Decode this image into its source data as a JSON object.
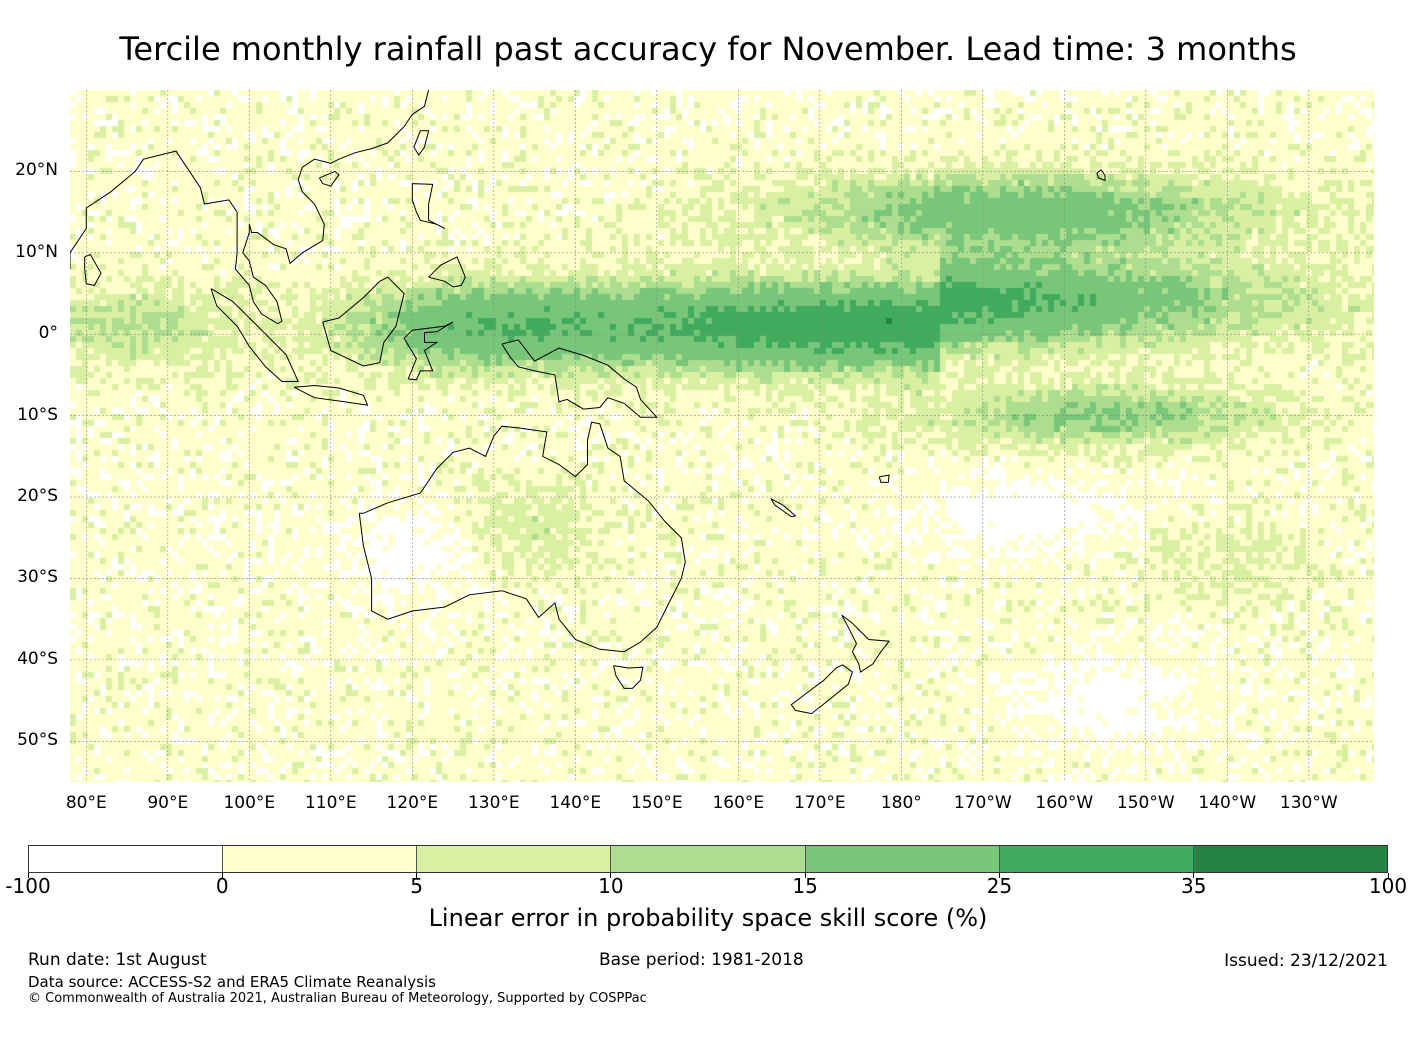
{
  "title": "Tercile monthly rainfall past accuracy for November. Lead time: 3 months",
  "map": {
    "lon_range": [
      78,
      238
    ],
    "lat_range": [
      -55,
      30
    ],
    "lat_labels": [
      {
        "lat": 20,
        "label": "20°N"
      },
      {
        "lat": 10,
        "label": "10°N"
      },
      {
        "lat": 0,
        "label": "0°"
      },
      {
        "lat": -10,
        "label": "10°S"
      },
      {
        "lat": -20,
        "label": "20°S"
      },
      {
        "lat": -30,
        "label": "30°S"
      },
      {
        "lat": -40,
        "label": "40°S"
      },
      {
        "lat": -50,
        "label": "50°S"
      }
    ],
    "lon_labels": [
      {
        "lon": 80,
        "label": "80°E"
      },
      {
        "lon": 90,
        "label": "90°E"
      },
      {
        "lon": 100,
        "label": "100°E"
      },
      {
        "lon": 110,
        "label": "110°E"
      },
      {
        "lon": 120,
        "label": "120°E"
      },
      {
        "lon": 130,
        "label": "130°E"
      },
      {
        "lon": 140,
        "label": "140°E"
      },
      {
        "lon": 150,
        "label": "150°E"
      },
      {
        "lon": 160,
        "label": "160°E"
      },
      {
        "lon": 170,
        "label": "170°E"
      },
      {
        "lon": 180,
        "label": "180°"
      },
      {
        "lon": 190,
        "label": "170°W"
      },
      {
        "lon": 200,
        "label": "160°W"
      },
      {
        "lon": 210,
        "label": "150°W"
      },
      {
        "lon": 220,
        "label": "140°W"
      },
      {
        "lon": 230,
        "label": "130°W"
      }
    ]
  },
  "colorbar": {
    "title": "Linear error in probability space skill score (%)",
    "tick_labels": [
      "-100",
      "0",
      "5",
      "10",
      "15",
      "25",
      "35",
      "100"
    ],
    "colors": [
      "#ffffff",
      "#ffffcc",
      "#d9f0a3",
      "#addd8e",
      "#78c679",
      "#41ab5d",
      "#238443"
    ]
  },
  "footer": {
    "run_date": "Run date: 1st August",
    "base_period": "Base period: 1981-2018",
    "issued": "Issued: 23/12/2021",
    "data_source": "Data source: ACCESS-S2 and ERA5 Climate Reanalysis",
    "copyright": "© Commonwealth of Australia 2021, Australian Bureau of Meteorology, Supported by COSPPac"
  }
}
